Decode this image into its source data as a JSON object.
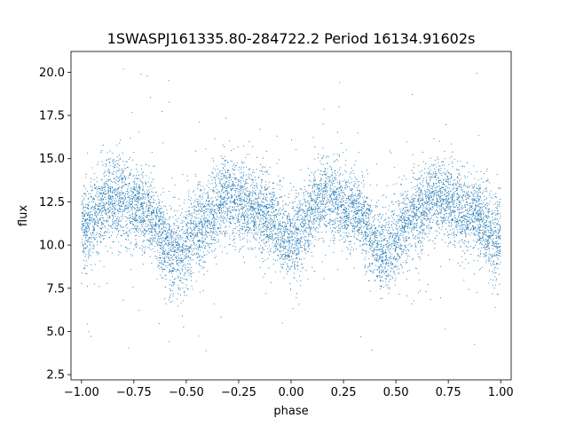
{
  "chart_data": {
    "type": "scatter",
    "title": "1SWASPJ161335.80-284722.2 Period 16134.91602s",
    "xlabel": "phase",
    "ylabel": "flux",
    "xlim": [
      -1.05,
      1.05
    ],
    "ylim": [
      2.2,
      21.2
    ],
    "xticks": [
      -1.0,
      -0.75,
      -0.5,
      -0.25,
      0.0,
      0.25,
      0.5,
      0.75,
      1.0
    ],
    "xtick_labels": [
      "−1.00",
      "−0.75",
      "−0.50",
      "−0.25",
      "0.00",
      "0.25",
      "0.50",
      "0.75",
      "1.00"
    ],
    "yticks": [
      2.5,
      5.0,
      7.5,
      10.0,
      12.5,
      15.0,
      17.5,
      20.0
    ],
    "ytick_labels": [
      "2.5",
      "5.0",
      "7.5",
      "10.0",
      "12.5",
      "15.0",
      "17.5",
      "20.0"
    ],
    "grid": false,
    "legend": "none",
    "marker_color": "#1f77b4",
    "description": "Dense phase-folded light curve: thousands of points spanning phase -1 to 1, flux oscillating twice per unit phase between about 12.5 (maxima near phase -0.85, -0.3, 0.15, 0.7) and about 9-10 (minima near -0.55, 0.0, 0.45, 1.0); scatter roughly +/-2, outliers from ~3 to ~20.5.",
    "trend": {
      "x": [
        -1.0,
        -0.85,
        -0.7,
        -0.55,
        -0.4,
        -0.3,
        -0.15,
        0.0,
        0.15,
        0.3,
        0.45,
        0.6,
        0.7,
        0.85,
        1.0
      ],
      "y": [
        11.0,
        12.8,
        12.0,
        9.5,
        11.5,
        12.8,
        12.0,
        10.3,
        12.8,
        12.0,
        9.6,
        11.8,
        12.8,
        11.8,
        10.3
      ]
    }
  }
}
